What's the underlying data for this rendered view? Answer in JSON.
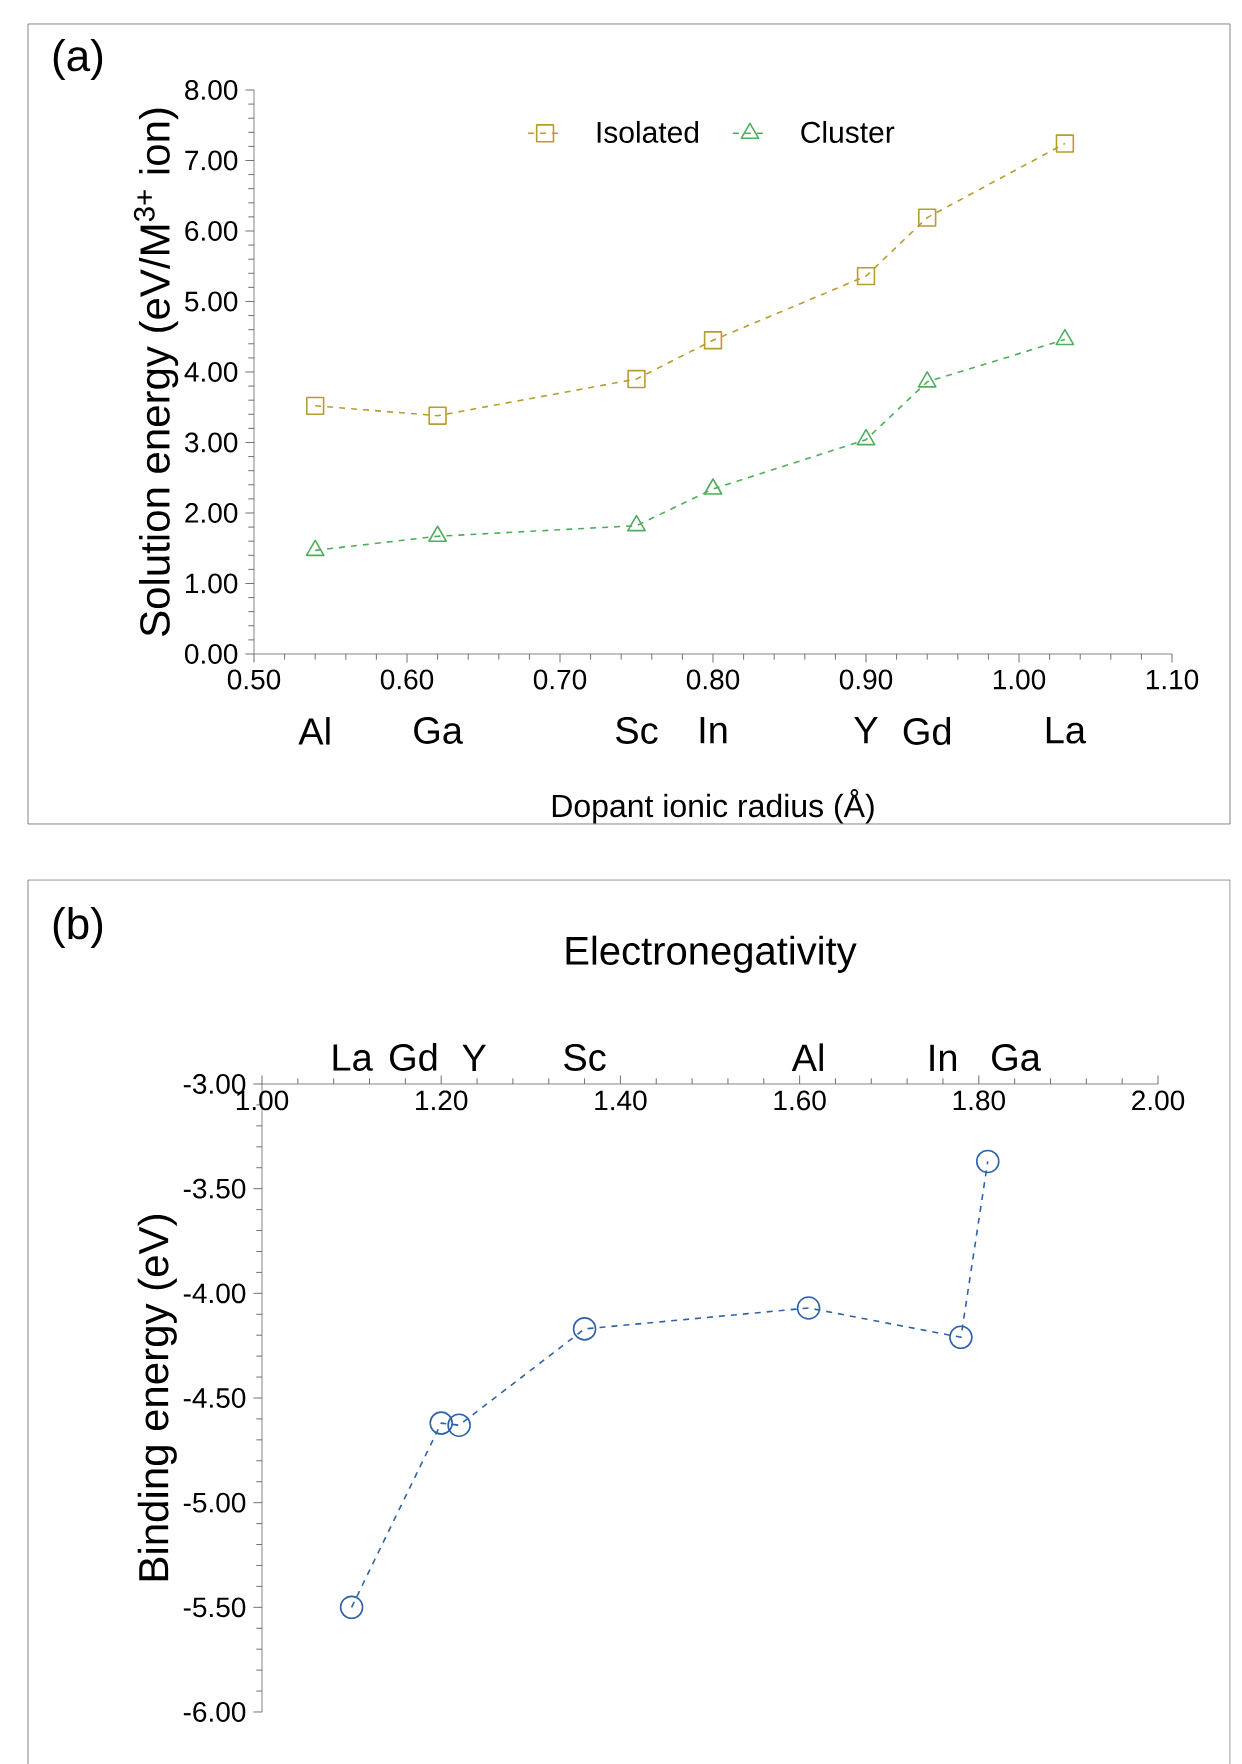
{
  "chart_data": [
    {
      "type": "line",
      "ylabel": "Solution energy (eV/M$^{3+}$ ion)",
      "xlabel": "Dopant ionic radius (Å)",
      "x": [
        0.54,
        0.62,
        0.75,
        0.8,
        0.9,
        0.94,
        1.03
      ],
      "series": [
        {
          "name": "Isolated",
          "color": "#b89d2c",
          "marker": "square",
          "values": [
            3.52,
            3.38,
            3.9,
            4.45,
            5.36,
            6.19,
            7.24
          ]
        },
        {
          "name": "Cluster",
          "color": "#4fae5c",
          "marker": "triangle",
          "values": [
            1.47,
            1.67,
            1.82,
            2.34,
            3.04,
            3.86,
            4.46
          ]
        }
      ],
      "xlim": [
        0.5,
        1.1
      ],
      "xticks": [
        {
          "value": 0.5,
          "label": "0.50"
        },
        {
          "value": 0.6,
          "label": "0.60"
        },
        {
          "value": 0.7,
          "label": "0.70"
        },
        {
          "value": 0.8,
          "label": "0.80"
        },
        {
          "value": 0.9,
          "label": "0.90"
        },
        {
          "value": 1.0,
          "label": "1.00"
        },
        {
          "value": 1.1,
          "label": "1.10"
        }
      ],
      "ylim": [
        0,
        8
      ],
      "yticks": [
        {
          "value": 0,
          "label": "0.00"
        },
        {
          "value": 1,
          "label": "1.00"
        },
        {
          "value": 2,
          "label": "2.00"
        },
        {
          "value": 3,
          "label": "3.00"
        },
        {
          "value": 4,
          "label": "4.00"
        },
        {
          "value": 5,
          "label": "5.00"
        },
        {
          "value": 6,
          "label": "6.00"
        },
        {
          "value": 7,
          "label": "7.00"
        },
        {
          "value": 8,
          "label": "8.00"
        }
      ],
      "line_style": "dashed",
      "legend": "top",
      "annotations": [
        "(a)",
        "Al",
        "Ga",
        "Sc",
        "In",
        "Y",
        "Gd",
        "La"
      ]
    },
    {
      "type": "line",
      "ylabel": "Binding energy (eV)",
      "x2label": "Electronegativity",
      "x": [
        1.1,
        1.2,
        1.22,
        1.36,
        1.61,
        1.78,
        1.81
      ],
      "series": [
        {
          "color": "#2f63a8",
          "marker": "circle",
          "axis": "x2",
          "values": [
            -5.5,
            -4.62,
            -4.63,
            -4.17,
            -4.07,
            -4.21,
            -3.37
          ]
        }
      ],
      "x2lim": [
        1.0,
        2.0
      ],
      "x2ticks": [
        {
          "value": 1.0,
          "label": "1.00"
        },
        {
          "value": 1.2,
          "label": "1.20"
        },
        {
          "value": 1.4,
          "label": "1.40"
        },
        {
          "value": 1.6,
          "label": "1.60"
        },
        {
          "value": 1.8,
          "label": "1.80"
        },
        {
          "value": 2.0,
          "label": "2.00"
        }
      ],
      "ylim": [
        -6,
        -3
      ],
      "yticks": [
        {
          "value": -6,
          "label": "-6.00"
        },
        {
          "value": -5.5,
          "label": "-5.50"
        },
        {
          "value": -5,
          "label": "-5.00"
        },
        {
          "value": -4.5,
          "label": "-4.50"
        },
        {
          "value": -4,
          "label": "-4.00"
        },
        {
          "value": -3.5,
          "label": "-3.50"
        },
        {
          "value": -3,
          "label": "-3.00"
        }
      ],
      "line_style": "dashed",
      "annotations": [
        "(b)",
        "La",
        "Gd",
        "Y",
        "Sc",
        "Al",
        "In",
        "Ga"
      ]
    }
  ]
}
